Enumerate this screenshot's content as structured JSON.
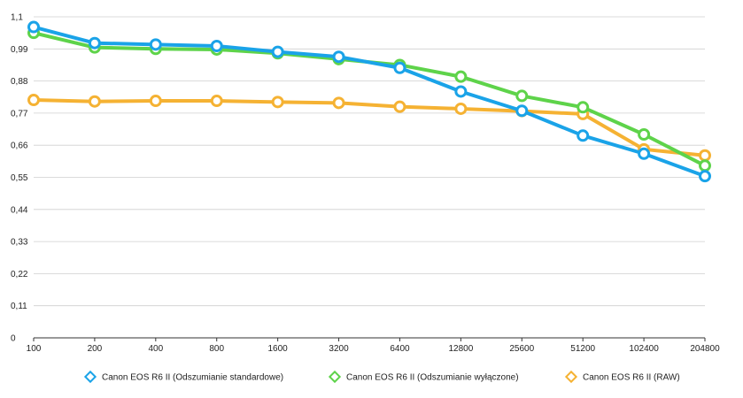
{
  "chart_data": {
    "type": "line",
    "categories": [
      "100",
      "200",
      "400",
      "800",
      "1600",
      "3200",
      "6400",
      "12800",
      "25600",
      "51200",
      "102400",
      "204800"
    ],
    "ylim": [
      0,
      1.1
    ],
    "yticks": [
      "0",
      "0,11",
      "0,22",
      "0,33",
      "0,44",
      "0,55",
      "0,66",
      "0,77",
      "0,88",
      "0,99",
      "1,1"
    ],
    "grid": true,
    "legend_position": "bottom",
    "series": [
      {
        "name": "Canon EOS R6 II (Odszumianie standardowe)",
        "color": "#1aa3e8",
        "values": [
          1.065,
          1.01,
          1.005,
          1.0,
          0.98,
          0.963,
          0.925,
          0.844,
          0.778,
          0.693,
          0.631,
          0.554
        ]
      },
      {
        "name": "Canon EOS R6 II (Odszumianie wyłączone)",
        "color": "#5ed34a",
        "values": [
          1.045,
          0.995,
          0.99,
          0.988,
          0.975,
          0.955,
          0.935,
          0.895,
          0.829,
          0.79,
          0.697,
          0.59
        ]
      },
      {
        "name": "Canon EOS R6 II (RAW)",
        "color": "#f5b233",
        "values": [
          0.815,
          0.81,
          0.812,
          0.812,
          0.808,
          0.805,
          0.792,
          0.785,
          0.777,
          0.767,
          0.646,
          0.625
        ]
      }
    ]
  }
}
